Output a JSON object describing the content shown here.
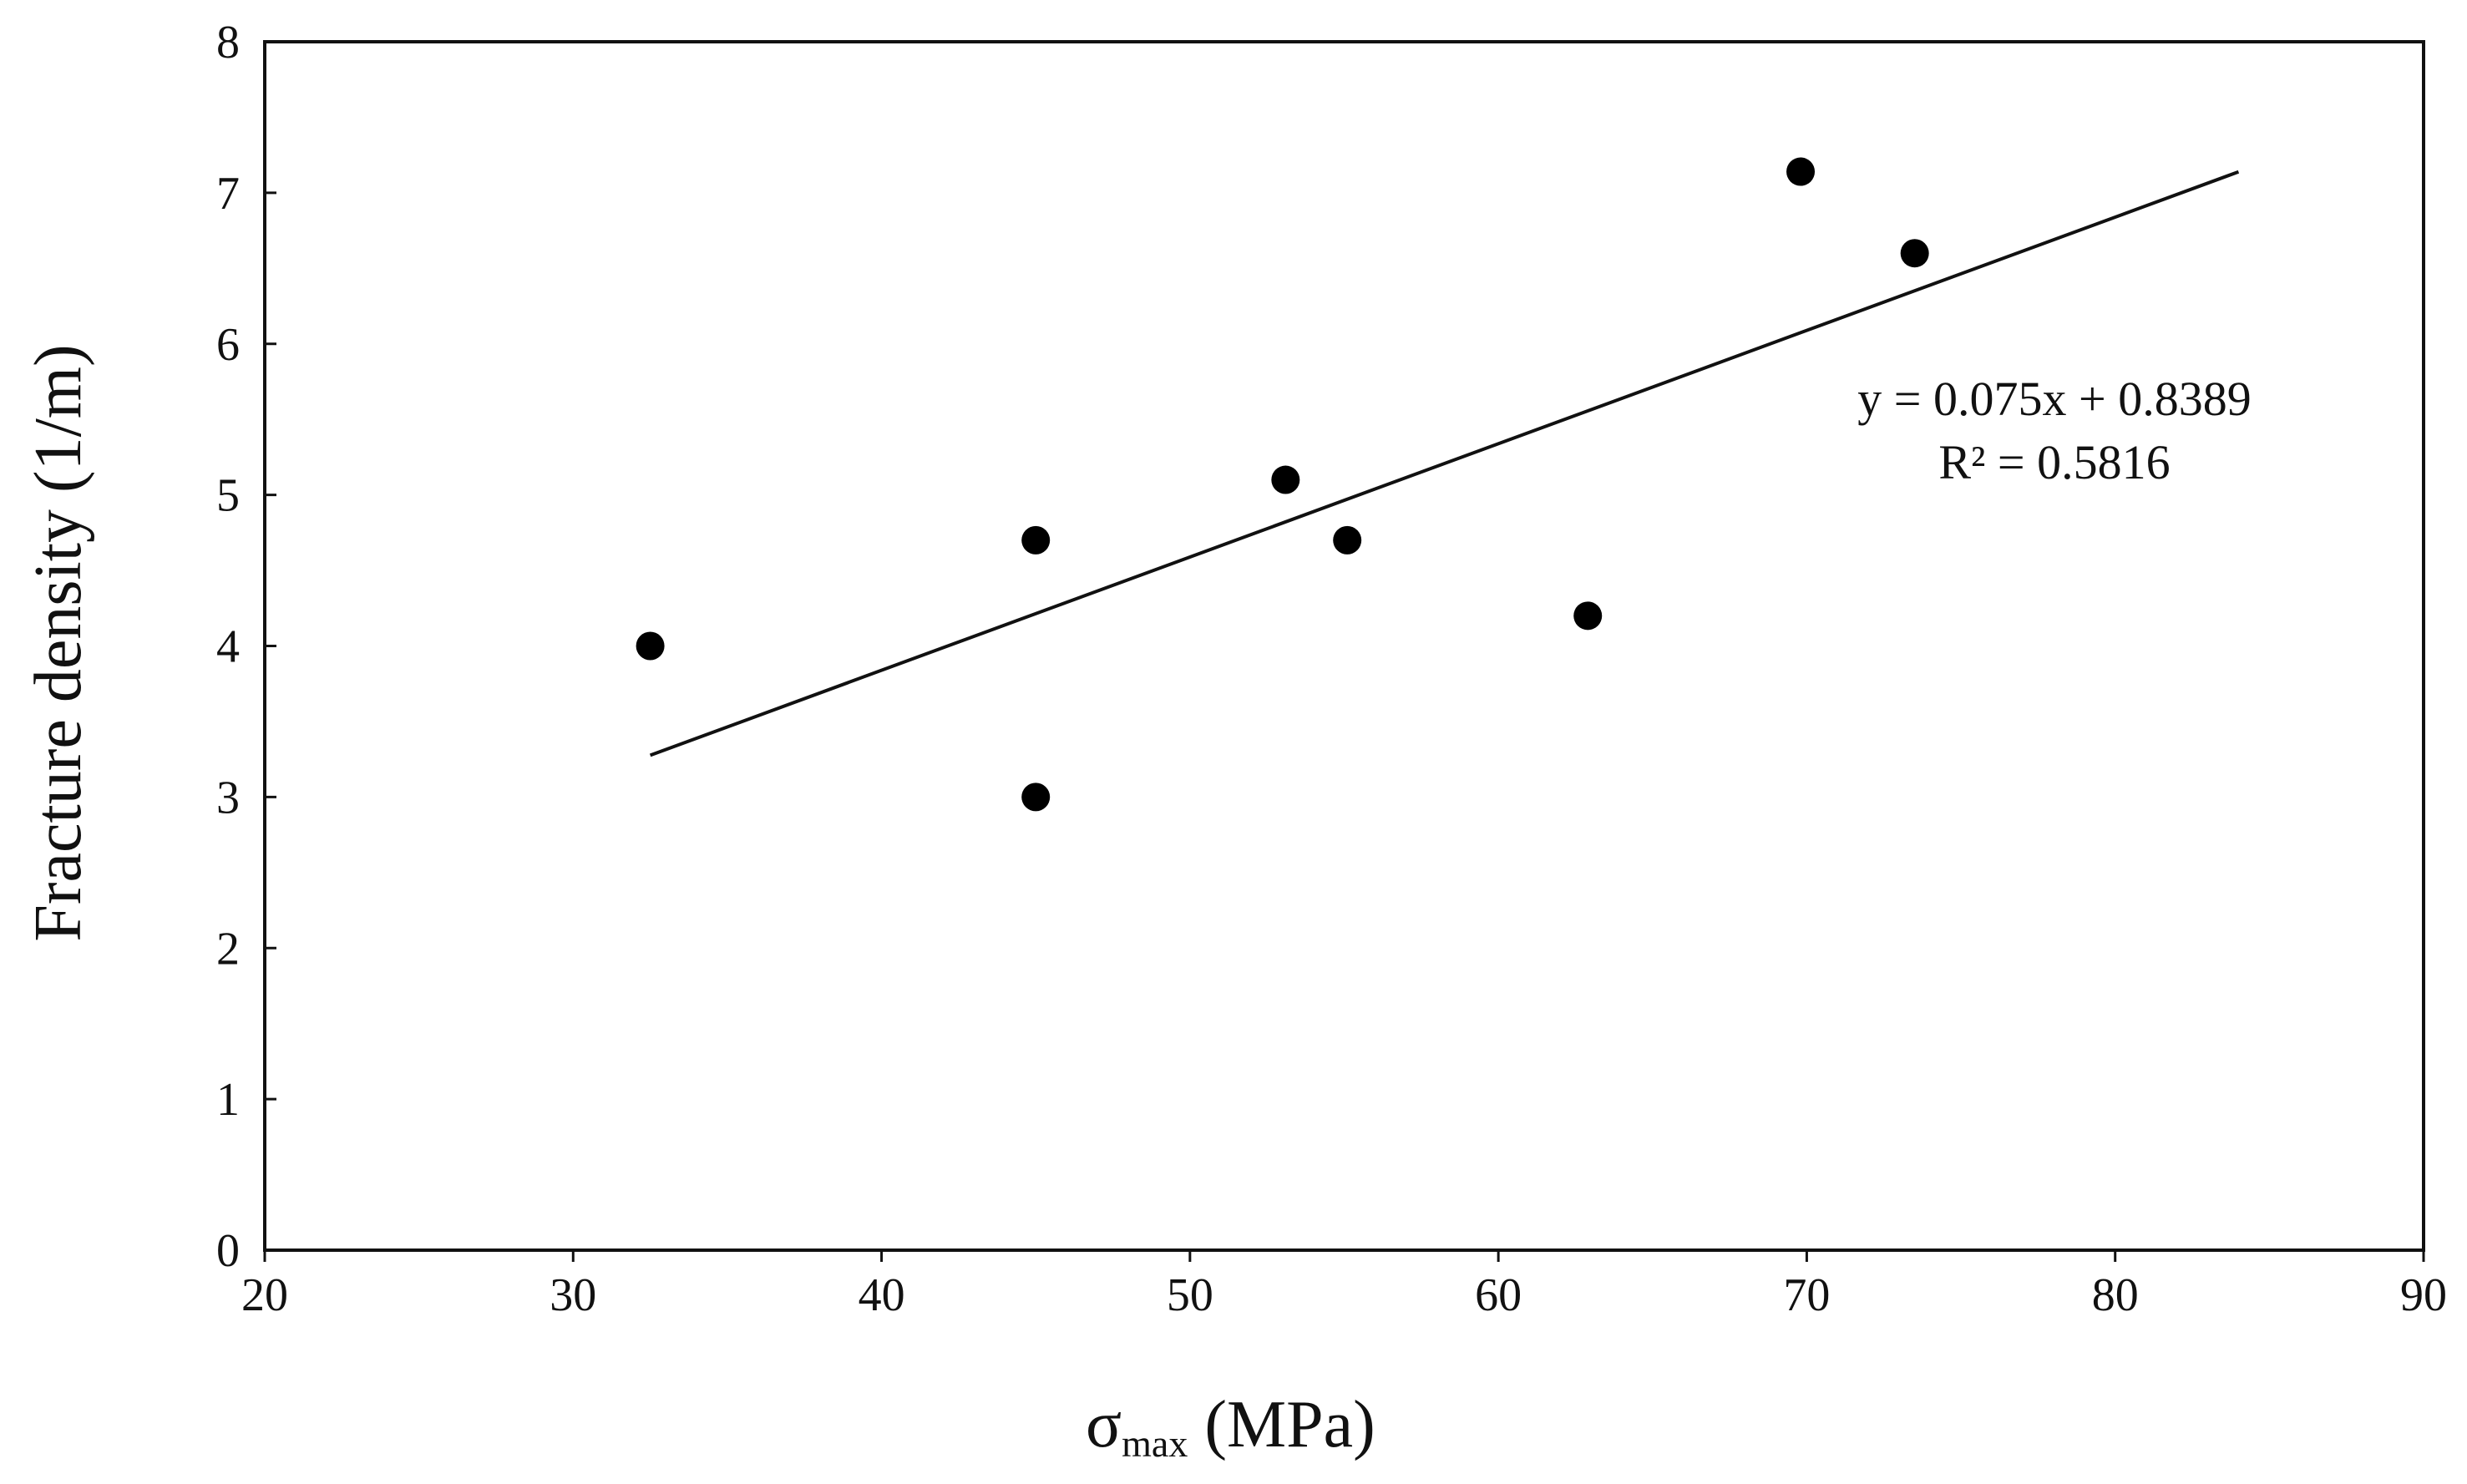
{
  "chart_data": {
    "type": "scatter",
    "xlabel": {
      "symbol": "σ",
      "subscript": "max",
      "unit": " (MPa)"
    },
    "ylabel": "Fracture density (1/m)",
    "xlim": [
      20,
      90
    ],
    "ylim": [
      0,
      8
    ],
    "x_ticks": [
      20,
      30,
      40,
      50,
      60,
      70,
      80,
      90
    ],
    "y_ticks": [
      0,
      1,
      2,
      3,
      4,
      5,
      6,
      7,
      8
    ],
    "grid": false,
    "series": [
      {
        "points": [
          {
            "x": 32.5,
            "y": 4.0
          },
          {
            "x": 45.0,
            "y": 4.7
          },
          {
            "x": 45.0,
            "y": 3.0
          },
          {
            "x": 53.1,
            "y": 5.1
          },
          {
            "x": 55.1,
            "y": 4.7
          },
          {
            "x": 62.9,
            "y": 4.2
          },
          {
            "x": 69.8,
            "y": 7.14
          },
          {
            "x": 73.5,
            "y": 6.6
          }
        ]
      }
    ],
    "trendline": {
      "slope": 0.075,
      "intercept": 0.8389,
      "x_range": [
        32.5,
        84.0
      ]
    },
    "annotations": {
      "equation": "y = 0.075x + 0.8389",
      "r_squared": "R² = 0.5816"
    }
  }
}
